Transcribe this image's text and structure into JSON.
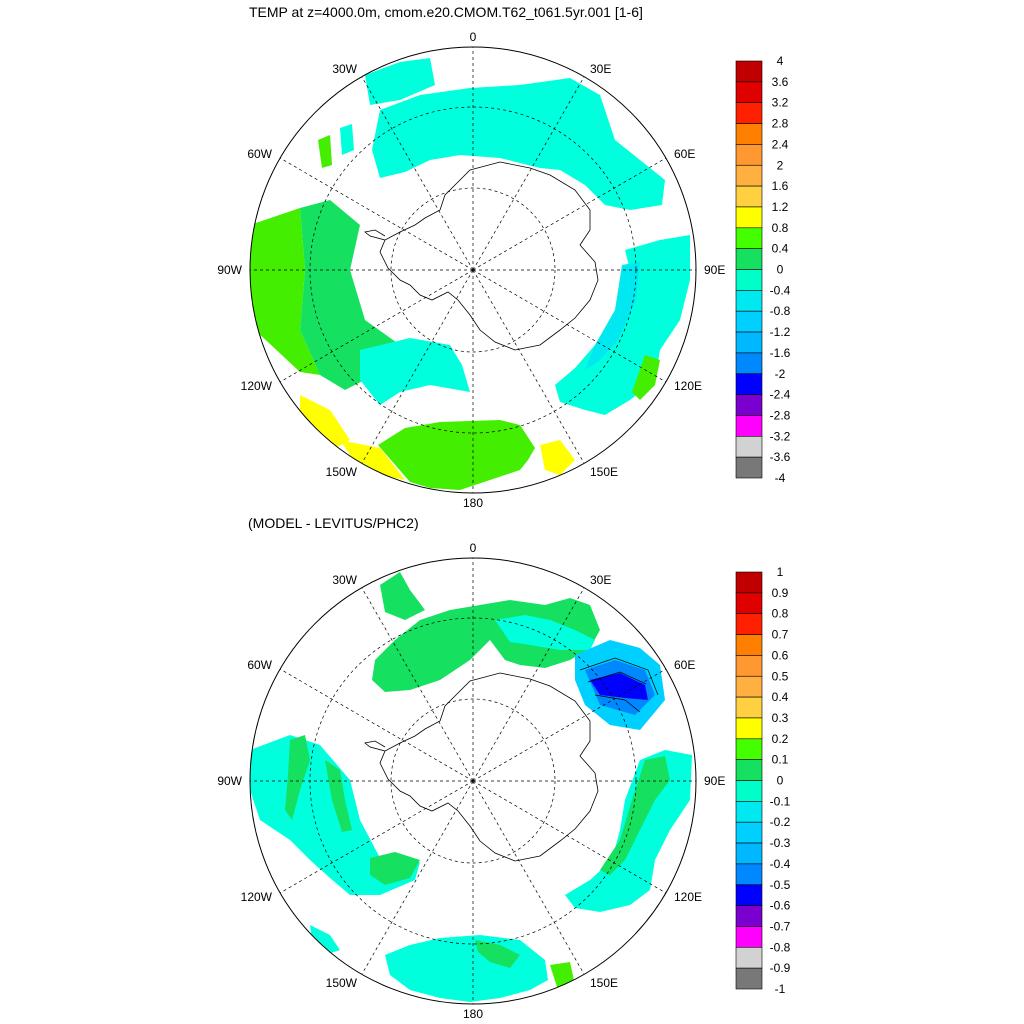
{
  "panels": [
    {
      "title": "TEMP at z=4000.0m, cmom.e20.CMOM.T62_t061.5yr.001 [1-6]",
      "lon_labels": [
        "0",
        "30E",
        "60E",
        "90E",
        "120E",
        "150E",
        "180",
        "150W",
        "120W",
        "90W",
        "60W",
        "30W"
      ],
      "colorbar": {
        "labels": [
          "4",
          "3.6",
          "3.2",
          "2.8",
          "2.4",
          "2",
          "1.6",
          "1.2",
          "0.8",
          "0.4",
          "0",
          "-0.4",
          "-0.8",
          "-1.2",
          "-1.6",
          "-2",
          "-2.4",
          "-2.8",
          "-3.2",
          "-3.6",
          "-4"
        ],
        "colors": [
          "#c00000",
          "#e00000",
          "#ff2000",
          "#ff8000",
          "#ff9830",
          "#ffb040",
          "#ffd040",
          "#ffff00",
          "#44ff00",
          "#16e060",
          "#00ffc8",
          "#00e8f0",
          "#00d0ff",
          "#00b8ff",
          "#0088ff",
          "#0000ff",
          "#7a00d0",
          "#ff00ff",
          "#d2d2d2",
          "#787878"
        ]
      }
    },
    {
      "title": "(MODEL - LEVITUS/PHC2)",
      "lon_labels": [
        "0",
        "30E",
        "60E",
        "90E",
        "120E",
        "150E",
        "180",
        "150W",
        "120W",
        "90W",
        "60W",
        "30W"
      ],
      "colorbar": {
        "labels": [
          "1",
          "0.9",
          "0.8",
          "0.7",
          "0.6",
          "0.5",
          "0.4",
          "0.3",
          "0.2",
          "0.1",
          "0",
          "-0.1",
          "-0.2",
          "-0.3",
          "-0.4",
          "-0.5",
          "-0.6",
          "-0.7",
          "-0.8",
          "-0.9",
          "-1"
        ],
        "colors": [
          "#c00000",
          "#e00000",
          "#ff2000",
          "#ff8000",
          "#ff9830",
          "#ffb040",
          "#ffd040",
          "#ffff00",
          "#44ff00",
          "#16e060",
          "#00ffc8",
          "#00e8f0",
          "#00d0ff",
          "#00b8ff",
          "#0088ff",
          "#0000ff",
          "#7a00d0",
          "#ff00ff",
          "#d2d2d2",
          "#787878"
        ]
      }
    }
  ]
}
